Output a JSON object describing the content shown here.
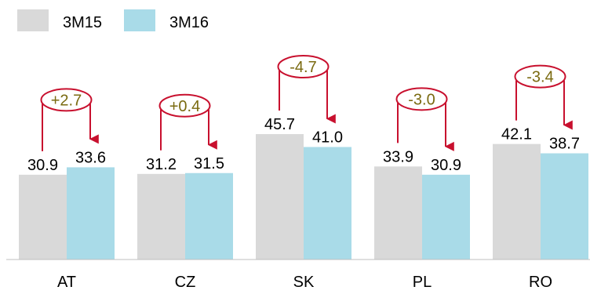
{
  "chart_data": {
    "type": "bar",
    "title": "",
    "xlabel": "",
    "ylabel": "",
    "categories": [
      "AT",
      "CZ",
      "SK",
      "PL",
      "RO"
    ],
    "series": [
      {
        "name": "3M15",
        "values": [
          30.9,
          31.2,
          45.7,
          33.9,
          42.1
        ],
        "color": "#d9d9d9"
      },
      {
        "name": "3M16",
        "values": [
          33.6,
          31.5,
          41.0,
          30.9,
          38.7
        ],
        "color": "#a9dbe8"
      }
    ],
    "value_labels": {
      "3M15": [
        "30.9",
        "31.2",
        "45.7",
        "33.9",
        "42.1"
      ],
      "3M16": [
        "33.6",
        "31.5",
        "41.0",
        "30.9",
        "38.7"
      ]
    },
    "changes": [
      "+2.7",
      "+0.4",
      "-4.7",
      "-3.0",
      "-3.4"
    ],
    "ylim": [
      0,
      60
    ],
    "grid": false,
    "legend_position": "top-left",
    "annotation_colors": {
      "arrow": "#c8102e",
      "change_text": "#7a6a10"
    }
  }
}
